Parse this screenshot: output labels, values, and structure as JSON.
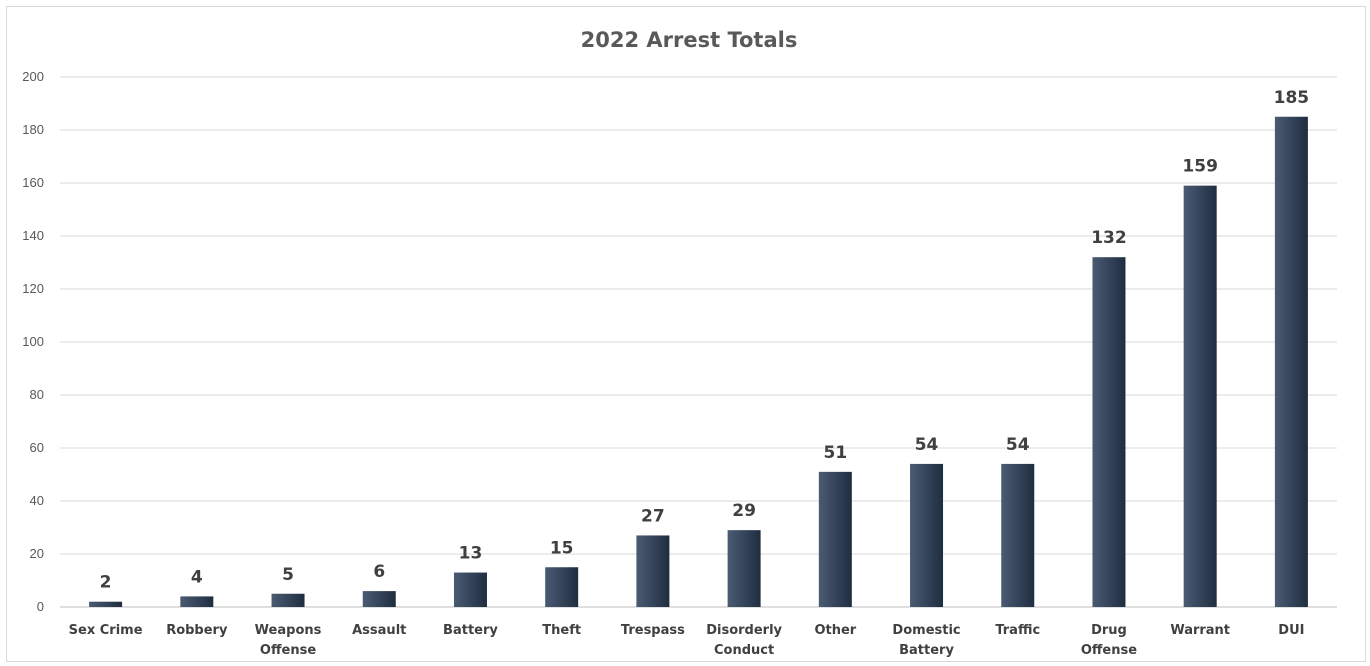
{
  "chart_data": {
    "type": "bar",
    "title": "2022 Arrest Totals",
    "xlabel": "",
    "ylabel": "",
    "categories": [
      [
        "Sex Crime"
      ],
      [
        "Robbery"
      ],
      [
        "Weapons",
        "Offense"
      ],
      [
        "Assault"
      ],
      [
        "Battery"
      ],
      [
        "Theft"
      ],
      [
        "Trespass"
      ],
      [
        "Disorderly",
        "Conduct"
      ],
      [
        "Other"
      ],
      [
        "Domestic",
        "Battery"
      ],
      [
        "Traffic"
      ],
      [
        "Drug",
        "Offense"
      ],
      [
        "Warrant"
      ],
      [
        "DUI"
      ]
    ],
    "values": [
      2,
      4,
      5,
      6,
      13,
      15,
      27,
      29,
      51,
      54,
      54,
      132,
      159,
      185
    ],
    "ylim": [
      0,
      200
    ],
    "yticks": [
      0,
      20,
      40,
      60,
      80,
      100,
      120,
      140,
      160,
      180,
      200
    ],
    "grid": true,
    "legend": "none",
    "colors": {
      "bar_dark": "#1f2d40",
      "bar_light": "#4a5b73",
      "grid": "#d9d9d9",
      "text": "#404040"
    }
  }
}
